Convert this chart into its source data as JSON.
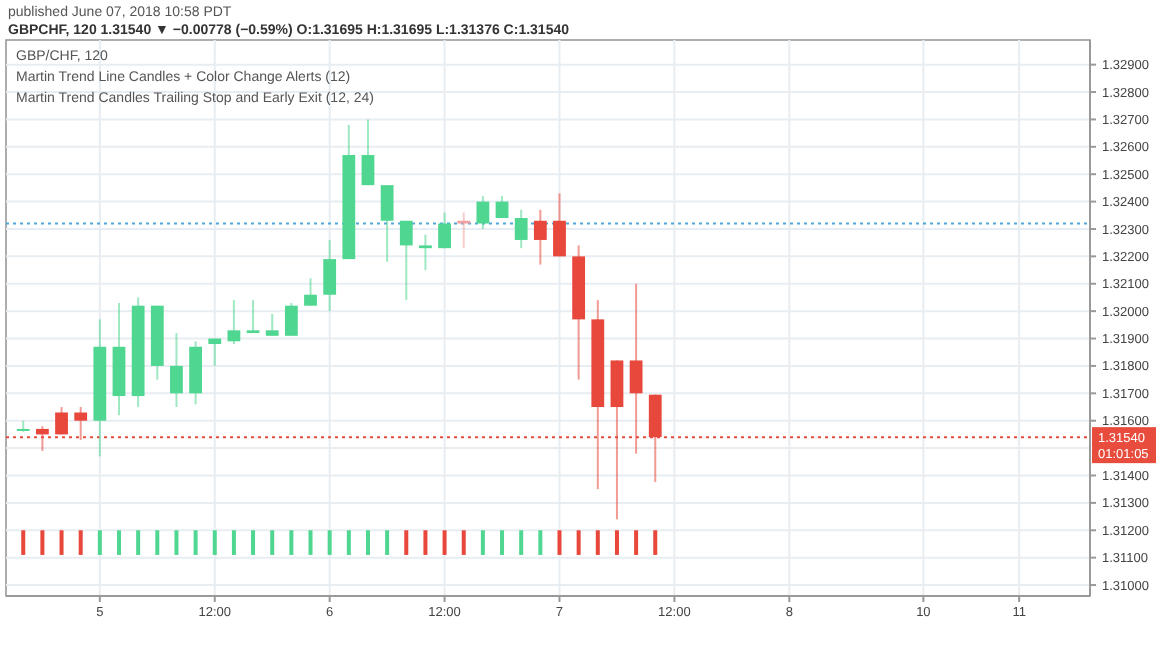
{
  "chart_data": {
    "type": "candlestick",
    "subtitle": "published June 07, 2018 10:58 PDT",
    "title": "GBPCHF, 120  1.31540 ▼ −0.00778 (−0.59%)  O:1.31695  H:1.31695  L:1.31376  C:1.31540",
    "annotations": [
      "GBP/CHF, 120",
      "Martin Trend Line Candles + Color Change Alerts (12)",
      "Martin Trend Candles Trailing Stop and Early Exit (12, 24)"
    ],
    "categories": [
      null,
      null,
      null,
      null,
      "5",
      null,
      null,
      null,
      null,
      null,
      "12:00",
      null,
      null,
      null,
      null,
      null,
      "6",
      null,
      null,
      null,
      null,
      null,
      "12:00",
      null,
      null,
      null,
      null,
      null,
      "7",
      null,
      null,
      null,
      null,
      null,
      "12:00",
      null,
      null,
      null,
      null,
      null,
      "8",
      null,
      null,
      null,
      null,
      null,
      null,
      "10",
      null,
      null,
      null,
      null,
      "11",
      null,
      null,
      null
    ],
    "ylim": [
      1.3096,
      1.3299
    ],
    "yticks": [
      {
        "value": 1.31,
        "label": "1.31000"
      },
      {
        "value": 1.311,
        "label": "1.31100"
      },
      {
        "value": 1.312,
        "label": "1.31200"
      },
      {
        "value": 1.313,
        "label": "1.31300"
      },
      {
        "value": 1.314,
        "label": "1.31400"
      },
      {
        "value": 1.315,
        "label": null
      },
      {
        "value": 1.316,
        "label": "1.31600"
      },
      {
        "value": 1.317,
        "label": "1.31700"
      },
      {
        "value": 1.318,
        "label": "1.31800"
      },
      {
        "value": 1.319,
        "label": "1.31900"
      },
      {
        "value": 1.32,
        "label": "1.32000"
      },
      {
        "value": 1.321,
        "label": "1.32100"
      },
      {
        "value": 1.322,
        "label": "1.32200"
      },
      {
        "value": 1.323,
        "label": "1.32300"
      },
      {
        "value": 1.324,
        "label": "1.32400"
      },
      {
        "value": 1.325,
        "label": "1.32500"
      },
      {
        "value": 1.326,
        "label": "1.32600"
      },
      {
        "value": 1.327,
        "label": "1.32700"
      },
      {
        "value": 1.328,
        "label": "1.32800"
      },
      {
        "value": 1.329,
        "label": "1.32900"
      }
    ],
    "grid": true,
    "ref_lines": [
      {
        "axis": "y",
        "value": 1.3232,
        "color": "#4fa8d8",
        "line_style": "dotted"
      },
      {
        "axis": "y",
        "value": 1.3154,
        "label": "1.31540\n01:01:05",
        "color": "#e84c3d",
        "line_style": "dotted"
      }
    ],
    "series": [
      {
        "ohlc": [
          [
            1.3157,
            1.316,
            1.3156,
            1.3157
          ],
          [
            1.3157,
            1.3158,
            1.3149,
            1.3155
          ],
          [
            1.3163,
            1.3165,
            1.3155,
            1.3155
          ],
          [
            1.3163,
            1.3165,
            1.3153,
            1.316
          ],
          [
            1.316,
            1.3197,
            1.3147,
            1.3187
          ],
          [
            1.3169,
            1.3203,
            1.3162,
            1.3187
          ],
          [
            1.3169,
            1.3205,
            1.3165,
            1.3202
          ],
          [
            1.318,
            1.3202,
            1.3175,
            1.3202
          ],
          [
            1.317,
            1.3192,
            1.3165,
            1.318
          ],
          [
            1.317,
            1.3189,
            1.3166,
            1.3187
          ],
          [
            1.3188,
            1.319,
            1.318,
            1.319
          ],
          [
            1.3189,
            1.3204,
            1.3188,
            1.3193
          ],
          [
            1.3192,
            1.3204,
            1.3192,
            1.3193
          ],
          [
            1.3191,
            1.3199,
            1.3191,
            1.3193
          ],
          [
            1.3191,
            1.3203,
            1.3191,
            1.3202
          ],
          [
            1.3202,
            1.3212,
            1.3202,
            1.3206
          ],
          [
            1.3206,
            1.3226,
            1.32,
            1.3219
          ],
          [
            1.3219,
            1.3268,
            1.3219,
            1.3257
          ],
          [
            1.3246,
            1.327,
            1.3246,
            1.3257
          ],
          [
            1.3233,
            1.3246,
            1.3218,
            1.3246
          ],
          [
            1.3224,
            1.3233,
            1.3204,
            1.3233
          ],
          [
            1.3223,
            1.3228,
            1.3215,
            1.3224
          ],
          [
            1.3223,
            1.3236,
            1.3223,
            1.3232
          ],
          [
            1.3233,
            1.3236,
            1.3223,
            1.3232
          ],
          [
            1.3232,
            1.3242,
            1.323,
            1.324
          ],
          [
            1.3234,
            1.3242,
            1.3234,
            1.324
          ],
          [
            1.3226,
            1.3237,
            1.3223,
            1.3234
          ],
          [
            1.3233,
            1.3237,
            1.3217,
            1.3226
          ],
          [
            1.3233,
            1.3243,
            1.322,
            1.322
          ],
          [
            1.322,
            1.3224,
            1.3175,
            1.3197
          ],
          [
            1.3197,
            1.3204,
            1.3135,
            1.3165
          ],
          [
            1.3182,
            1.3182,
            1.3124,
            1.3165
          ],
          [
            1.3182,
            1.321,
            1.3148,
            1.317
          ],
          [
            1.31695,
            1.31695,
            1.31376,
            1.3154
          ],
          null,
          null,
          null,
          null,
          null,
          null,
          null,
          null,
          null,
          null,
          null,
          null,
          null,
          null,
          null,
          null,
          null,
          null,
          null,
          null,
          null,
          null
        ],
        "colors": [
          "#4fd690",
          "#e8473c",
          "#e8473c",
          "#e8473c",
          "#4fd690",
          "#4fd690",
          "#4fd690",
          "#4fd690",
          "#4fd690",
          "#4fd690",
          "#4fd690",
          "#4fd690",
          "#4fd690",
          "#4fd690",
          "#4fd690",
          "#4fd690",
          "#4fd690",
          "#4fd690",
          "#4fd690",
          "#4fd690",
          "#4fd690",
          "#4fd690",
          "#4fd690",
          "#f2a0a0",
          "#4fd690",
          "#4fd690",
          "#4fd690",
          "#e8473c",
          "#e8473c",
          "#e8473c",
          "#e8473c",
          "#e8473c",
          "#e8473c",
          "#e8473c",
          null,
          null,
          null,
          null,
          null,
          null,
          null,
          null,
          null,
          null,
          null,
          null,
          null,
          null,
          null,
          null,
          null,
          null,
          null,
          null,
          null,
          null
        ]
      },
      {
        "type": "bar",
        "base": [
          1.3111,
          1.3111,
          1.3111,
          1.3111,
          1.3111,
          1.3111,
          1.3111,
          1.3111,
          1.3111,
          1.3111,
          1.3111,
          1.3111,
          1.3111,
          1.3111,
          1.3111,
          1.3111,
          1.3111,
          1.3111,
          1.3111,
          1.3111,
          1.3111,
          1.3111,
          1.3111,
          1.3111,
          1.3111,
          1.3111,
          1.3111,
          1.3111,
          1.3111,
          1.3111,
          1.3111,
          1.3111,
          1.3111,
          1.3111,
          null,
          null,
          null,
          null,
          null,
          null,
          null,
          null,
          null,
          null,
          null,
          null,
          null,
          null,
          null,
          null,
          null,
          null,
          null,
          null,
          null,
          null
        ],
        "values": [
          0.0009,
          0.0009,
          0.0009,
          0.0009,
          0.0009,
          0.0009,
          0.0009,
          0.0009,
          0.0009,
          0.0009,
          0.0009,
          0.0009,
          0.0009,
          0.0009,
          0.0009,
          0.0009,
          0.0009,
          0.0009,
          0.0009,
          0.0009,
          0.0009,
          0.0009,
          0.0009,
          0.0009,
          0.0009,
          0.0009,
          0.0009,
          0.0009,
          0.0009,
          0.0009,
          0.0009,
          0.0009,
          0.0009,
          0.0009,
          null,
          null,
          null,
          null,
          null,
          null,
          null,
          null,
          null,
          null,
          null,
          null,
          null,
          null,
          null,
          null,
          null,
          null,
          null,
          null,
          null,
          null
        ],
        "colors": [
          "#e8473c",
          "#e8473c",
          "#e8473c",
          "#e8473c",
          "#4fd690",
          "#4fd690",
          "#4fd690",
          "#4fd690",
          "#4fd690",
          "#4fd690",
          "#4fd690",
          "#4fd690",
          "#4fd690",
          "#4fd690",
          "#4fd690",
          "#4fd690",
          "#4fd690",
          "#4fd690",
          "#4fd690",
          "#4fd690",
          "#e8473c",
          "#e8473c",
          "#e8473c",
          "#e8473c",
          "#4fd690",
          "#4fd690",
          "#4fd690",
          "#4fd690",
          "#e8473c",
          "#e8473c",
          "#e8473c",
          "#e8473c",
          "#e8473c",
          "#e8473c",
          null,
          null,
          null,
          null,
          null,
          null,
          null,
          null,
          null,
          null,
          null,
          null,
          null,
          null,
          null,
          null,
          null,
          null,
          null,
          null,
          null,
          null
        ]
      }
    ]
  }
}
